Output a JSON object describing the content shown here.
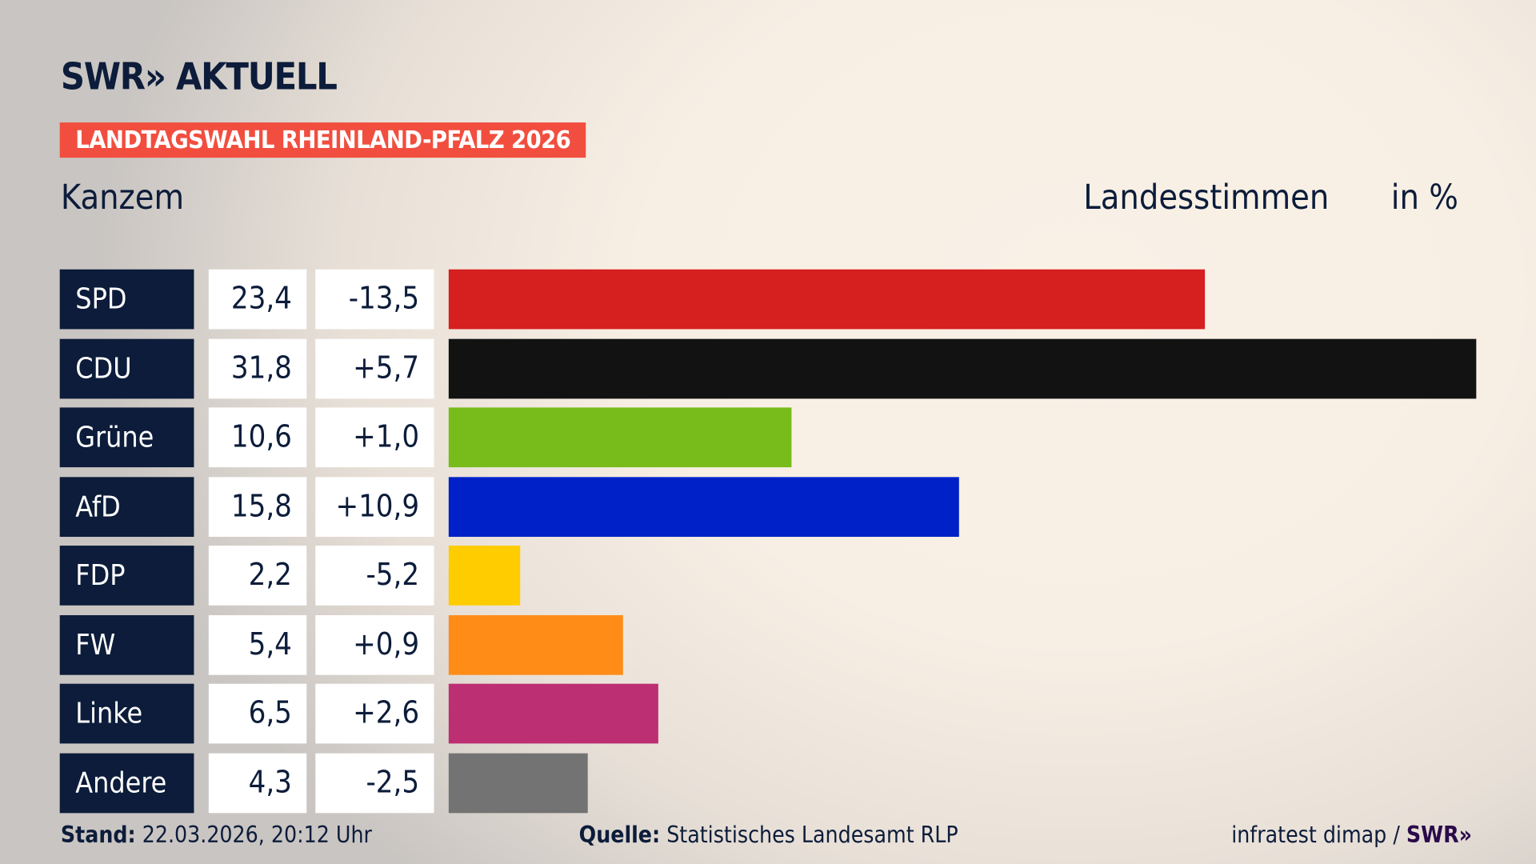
{
  "header": {
    "logo": "SWR» AKTUELL",
    "badge": "LANDTAGSWAHL RHEINLAND-PFALZ 2026",
    "place": "Kanzem",
    "metric": "Landesstimmen",
    "unit": "in %"
  },
  "chart_data": {
    "type": "bar",
    "orientation": "horizontal",
    "categories": [
      "SPD",
      "CDU",
      "Grüne",
      "AfD",
      "FDP",
      "FW",
      "Linke",
      "Andere"
    ],
    "values": [
      23.4,
      31.8,
      10.6,
      15.8,
      2.2,
      5.4,
      6.5,
      4.3
    ],
    "value_labels": [
      "23,4",
      "31,8",
      "10,6",
      "15,8",
      "2,2",
      "5,4",
      "6,5",
      "4,3"
    ],
    "change_labels": [
      "-13,5",
      "+5,7",
      "+1,0",
      "+10,9",
      "-5,2",
      "+0,9",
      "+2,6",
      "-2,5"
    ],
    "colors": [
      "#d61f1f",
      "#121212",
      "#78bc1b",
      "#0021c8",
      "#ffcc00",
      "#ff8c17",
      "#bc2f72",
      "#737373"
    ],
    "xlim": [
      0,
      31.8
    ],
    "grid": false
  },
  "footer": {
    "stand_label": "Stand:",
    "stand_value": "22.03.2026, 20:12 Uhr",
    "quelle_label": "Quelle:",
    "quelle_value": "Statistisches Landesamt RLP",
    "credit": "infratest dimap /",
    "credit_logo": "SWR»"
  }
}
